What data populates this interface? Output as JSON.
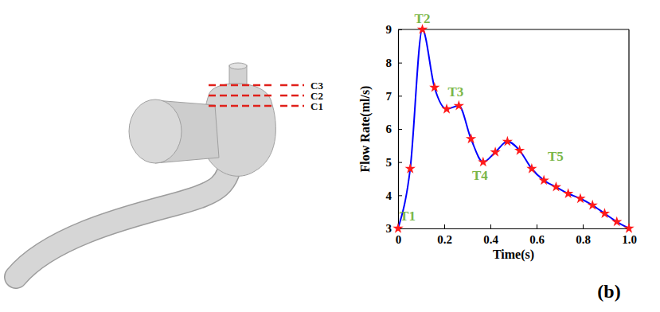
{
  "chart_data": {
    "type": "line",
    "x_label": "Time(s)",
    "y_label": "Flow Rate(ml/s)",
    "x": [
      0,
      0.0526,
      0.1053,
      0.1579,
      0.2105,
      0.2632,
      0.3158,
      0.3684,
      0.4211,
      0.4737,
      0.5263,
      0.5789,
      0.6316,
      0.6842,
      0.7368,
      0.7895,
      0.8421,
      0.8947,
      0.9474,
      1.0
    ],
    "series": [
      {
        "color": "#0000ff",
        "marker": "star",
        "line_style": "solid",
        "values": [
          3.0,
          4.8,
          9.0,
          7.25,
          6.6,
          6.7,
          5.7,
          5.0,
          5.3,
          5.62,
          5.35,
          4.8,
          4.45,
          4.25,
          4.05,
          3.9,
          3.7,
          3.45,
          3.2,
          3.0
        ]
      }
    ],
    "xlim": [
      0,
      1
    ],
    "xticks": [
      0,
      0.2,
      0.4,
      0.6,
      0.8,
      {
        "value": 1,
        "label": "1.0"
      }
    ],
    "ylim": [
      3,
      9
    ],
    "yticks": [
      3,
      4,
      5,
      6,
      7,
      8,
      9
    ],
    "grid": false,
    "annotations": [
      {
        "text": "T1",
        "x": 0,
        "y": 3.0
      },
      {
        "text": "T2",
        "x": 0.1053,
        "y": 9.0
      },
      {
        "text": "T3",
        "x": 0.2632,
        "y": 6.7
      },
      {
        "text": "T4",
        "x": 0.3684,
        "y": 5.0
      },
      {
        "text": "T5",
        "x": 0.5789,
        "y": 4.8
      }
    ]
  },
  "figure": {
    "panel_label": "(b)",
    "vessel_sections": [
      "C3",
      "C2",
      "C1"
    ]
  }
}
